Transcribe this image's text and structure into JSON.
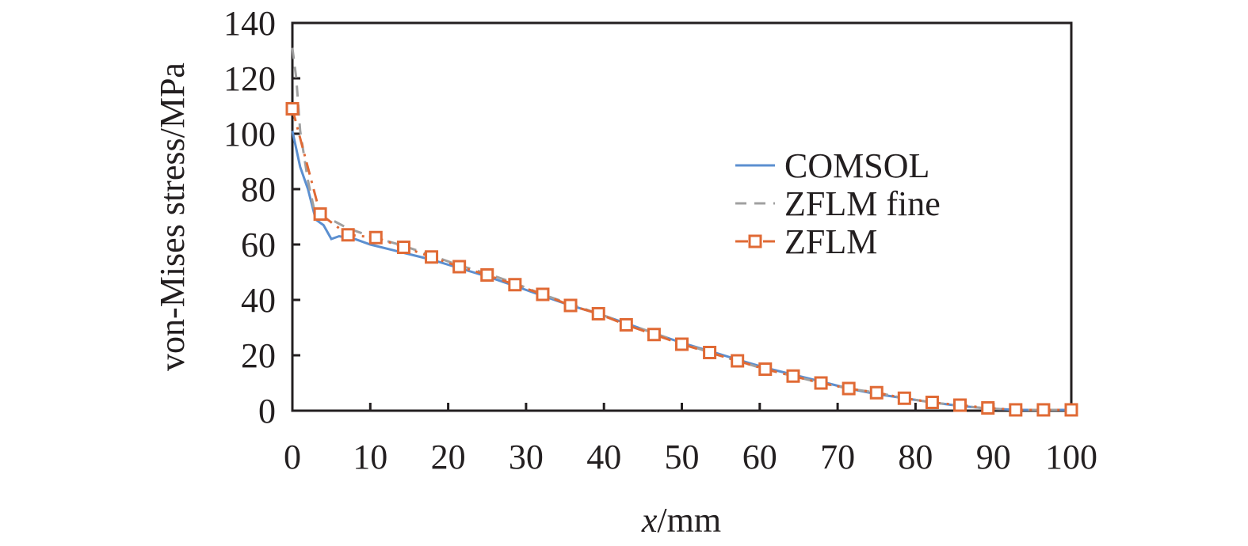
{
  "chart_data": {
    "type": "line",
    "xlabel_italic": "x",
    "xlabel_rest": "/mm",
    "ylabel": "von-Mises stress/MPa",
    "xlim": [
      0,
      100
    ],
    "ylim": [
      0,
      140
    ],
    "xticks": [
      0,
      10,
      20,
      30,
      40,
      50,
      60,
      70,
      80,
      90,
      100
    ],
    "yticks": [
      0,
      20,
      40,
      60,
      80,
      100,
      120,
      140
    ],
    "grid": false,
    "legend_position": "right",
    "series": [
      {
        "name": "COMSOL",
        "color": "#5b8fd0",
        "style": "solid",
        "x": [
          0,
          1,
          2,
          3,
          4,
          5,
          6,
          8,
          10,
          14.3,
          17.9,
          21.4,
          25,
          28.6,
          32.1,
          35.7,
          39.3,
          42.9,
          46.4,
          50,
          53.6,
          57.1,
          60.7,
          64.3,
          67.9,
          71.4,
          75,
          78.6,
          82.1,
          85.7,
          89.3,
          92.9,
          96.4,
          100
        ],
        "y": [
          101,
          88,
          80,
          69,
          67,
          62,
          63,
          62,
          60,
          57,
          54.5,
          51.5,
          48.5,
          45,
          41.5,
          38,
          35,
          31.5,
          28,
          24.5,
          21.5,
          18.5,
          15.5,
          13,
          10.5,
          8,
          6,
          4.5,
          3,
          1.7,
          0.8,
          0.3,
          0.3,
          0.3
        ]
      },
      {
        "name": "ZFLM fine",
        "color": "#a0a0a0",
        "style": "dashed",
        "x": [
          0,
          0.5,
          1,
          2,
          3,
          5,
          7,
          10,
          14.3,
          17.9,
          21.4,
          25,
          28.6,
          32.1,
          35.7,
          39.3,
          42.9,
          46.4,
          50,
          53.6,
          57.1,
          60.7,
          64.3,
          67.9,
          71.4,
          75,
          78.6,
          82.1,
          85.7,
          89.3,
          92.9,
          96.4,
          100
        ],
        "y": [
          131,
          120,
          101,
          83,
          70,
          69,
          66,
          63,
          59.5,
          56,
          52.5,
          49.5,
          46,
          42,
          38.5,
          35,
          31.5,
          28,
          24.5,
          21,
          18,
          15,
          12.5,
          10,
          8,
          6.5,
          4.5,
          3,
          1.8,
          0.8,
          0.3,
          0.3,
          0.3
        ]
      },
      {
        "name": "ZFLM",
        "color": "#e06a35",
        "style": "dash-dot-square",
        "x": [
          0,
          3.57,
          7.14,
          10.71,
          14.29,
          17.86,
          21.43,
          25,
          28.57,
          32.14,
          35.71,
          39.29,
          42.86,
          46.43,
          50,
          53.57,
          57.14,
          60.71,
          64.29,
          67.86,
          71.43,
          75,
          78.57,
          82.14,
          85.71,
          89.29,
          92.86,
          96.43,
          100
        ],
        "y": [
          109,
          71,
          63.5,
          62.5,
          59,
          55.5,
          52,
          49,
          45.5,
          42,
          38,
          35,
          31,
          27.5,
          24,
          21,
          18,
          15,
          12.5,
          10,
          8,
          6.5,
          4.5,
          3,
          2,
          1,
          0.3,
          0.3,
          0.3
        ]
      }
    ]
  }
}
